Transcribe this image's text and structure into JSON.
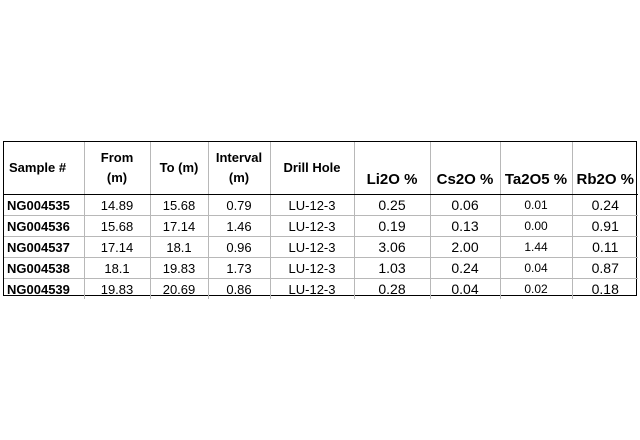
{
  "table": {
    "headers": [
      {
        "line1": "Sample #",
        "line2": ""
      },
      {
        "line1": "From",
        "line2": "(m)"
      },
      {
        "line1": "To (m)",
        "line2": ""
      },
      {
        "line1": "Interval",
        "line2": "(m)"
      },
      {
        "line1": "Drill Hole",
        "line2": ""
      },
      {
        "line1": "Li2O %",
        "line2": ""
      },
      {
        "line1": "Cs2O %",
        "line2": ""
      },
      {
        "line1": "Ta2O5 %",
        "line2": ""
      },
      {
        "line1": "Rb2O %",
        "line2": ""
      }
    ],
    "rows": [
      [
        "NG004535",
        "14.89",
        "15.68",
        "0.79",
        "LU-12-3",
        "0.25",
        "0.06",
        "0.01",
        "0.24"
      ],
      [
        "NG004536",
        "15.68",
        "17.14",
        "1.46",
        "LU-12-3",
        "0.19",
        "0.13",
        "0.00",
        "0.91"
      ],
      [
        "NG004537",
        "17.14",
        "18.1",
        "0.96",
        "LU-12-3",
        "3.06",
        "2.00",
        "1.44",
        "0.11"
      ],
      [
        "NG004538",
        "18.1",
        "19.83",
        "1.73",
        "LU-12-3",
        "1.03",
        "0.24",
        "0.04",
        "0.87"
      ],
      [
        "NG004539",
        "19.83",
        "20.69",
        "0.86",
        "LU-12-3",
        "0.28",
        "0.04",
        "0.02",
        "0.18"
      ]
    ]
  }
}
